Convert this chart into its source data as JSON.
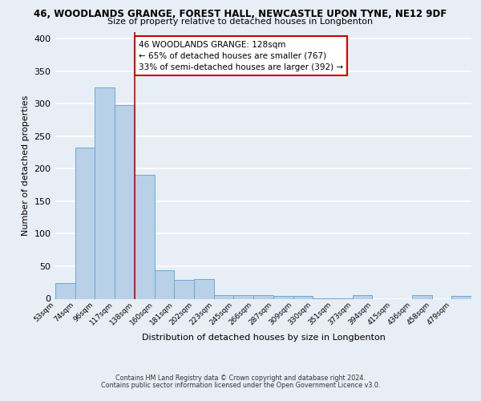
{
  "title1": "46, WOODLANDS GRANGE, FOREST HALL, NEWCASTLE UPON TYNE, NE12 9DF",
  "title2": "Size of property relative to detached houses in Longbenton",
  "xlabel": "Distribution of detached houses by size in Longbenton",
  "ylabel": "Number of detached properties",
  "bin_labels": [
    "53sqm",
    "74sqm",
    "96sqm",
    "117sqm",
    "138sqm",
    "160sqm",
    "181sqm",
    "202sqm",
    "223sqm",
    "245sqm",
    "266sqm",
    "287sqm",
    "309sqm",
    "330sqm",
    "351sqm",
    "373sqm",
    "394sqm",
    "415sqm",
    "436sqm",
    "458sqm",
    "479sqm"
  ],
  "bar_heights": [
    24,
    233,
    325,
    298,
    190,
    44,
    29,
    30,
    6,
    6,
    5,
    4,
    4,
    1,
    1,
    5,
    0,
    0,
    5,
    0,
    4
  ],
  "bar_color": "#b8d0e8",
  "bar_edge_color": "#6aaad4",
  "vline_x": 4.0,
  "vline_color": "#cc0000",
  "annotation_lines": [
    "46 WOODLANDS GRANGE: 128sqm",
    "← 65% of detached houses are smaller (767)",
    "33% of semi-detached houses are larger (392) →"
  ],
  "annotation_box_color": "#ffffff",
  "annotation_box_edge": "#cc0000",
  "ylim": [
    0,
    410
  ],
  "yticks": [
    0,
    50,
    100,
    150,
    200,
    250,
    300,
    350,
    400
  ],
  "footer1": "Contains HM Land Registry data © Crown copyright and database right 2024.",
  "footer2": "Contains public sector information licensed under the Open Government Licence v3.0.",
  "bg_color": "#e8eef5",
  "plot_bg_color": "#e8eef5"
}
